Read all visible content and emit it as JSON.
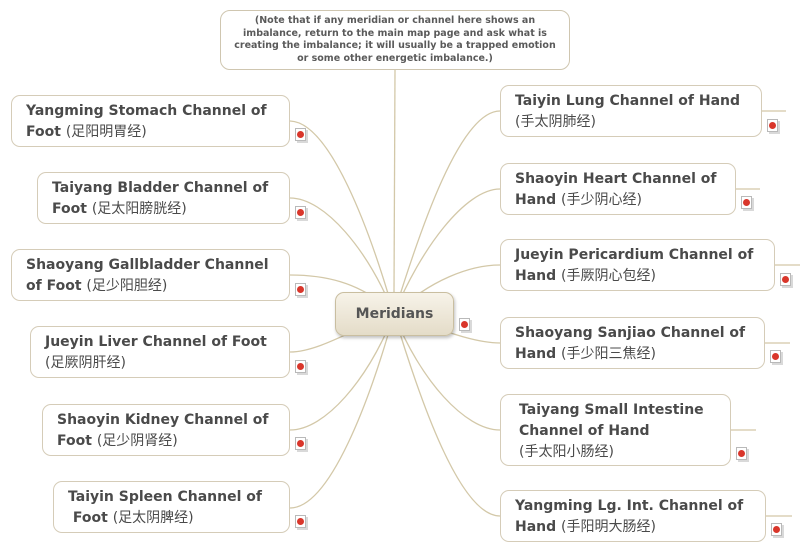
{
  "note": "(Note that if any meridian or channel here shows an imbalance, return to the main map page and ask what is creating the imbalance; it will usually be a trapped emotion or some other energetic imbalance.)",
  "center": {
    "label": "Meridians"
  },
  "left_nodes": [
    {
      "en1": "Yangming Stomach Channel of",
      "en2": "Foot",
      "cn": "(足阳明胃经)"
    },
    {
      "en1": "Taiyang Bladder Channel of",
      "en2": "Foot",
      "cn": "(足太阳膀胱经)"
    },
    {
      "en1": "Shaoyang Gallbladder Channel",
      "en2": "of Foot",
      "cn": "(足少阳胆经)"
    },
    {
      "en1": "Jueyin Liver Channel of Foot",
      "en2": "",
      "cn": "(足厥阴肝经)"
    },
    {
      "en1": "Shaoyin Kidney Channel of",
      "en2": "Foot",
      "cn": "(足少阴肾经)"
    },
    {
      "en1": "Taiyin Spleen Channel of",
      "en2": "Foot",
      "cn": "(足太阴脾经)"
    }
  ],
  "right_nodes": [
    {
      "en1": "Taiyin Lung Channel of Hand",
      "en2": "",
      "cn": "(手太阴肺经)"
    },
    {
      "en1": "Shaoyin Heart Channel of",
      "en2": "Hand",
      "cn": "(手少阴心经)"
    },
    {
      "en1": "Jueyin Pericardium Channel of",
      "en2": "Hand",
      "cn": "(手厥阴心包经)"
    },
    {
      "en1": "Shaoyang Sanjiao Channel of",
      "en2": "Hand",
      "cn": "(手少阳三焦经)"
    },
    {
      "en1": "Taiyang Small Intestine",
      "en2": "Channel of Hand",
      "cn": "(手太阳小肠经)"
    },
    {
      "en1": "Yangming Lg. Int. Channel of",
      "en2": "Hand",
      "cn": "(手阳明大肠经)"
    }
  ],
  "icon": "document-attachment-icon",
  "colors": {
    "connector": "#d3c8a8",
    "node_border": "#d5ccb8",
    "text": "#4a4a4a",
    "attachment_red": "#d9362b"
  }
}
